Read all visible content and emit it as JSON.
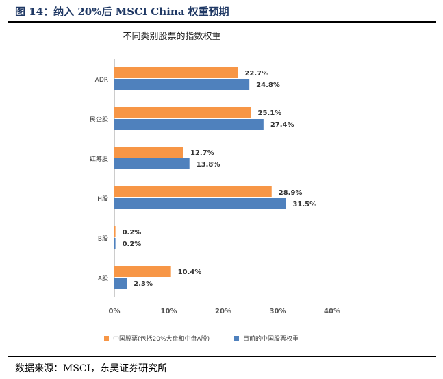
{
  "figure_title": "图 14：纳入 20%后 MSCI China 权重预期",
  "source": "数据来源：MSCI，东吴证券研究所",
  "chart_data": {
    "type": "bar",
    "orientation": "horizontal",
    "title": "不同类别股票的指数权重",
    "categories": [
      "ADR",
      "民企股",
      "红筹股",
      "H股",
      "B股",
      "A股"
    ],
    "series": [
      {
        "name": "中国股票(包括20%大盘和中盘A股)",
        "color": "#f79646",
        "values": [
          22.7,
          25.1,
          12.7,
          28.9,
          0.2,
          10.4
        ],
        "labels": [
          "22.7%",
          "25.1%",
          "12.7%",
          "28.9%",
          "0.2%",
          "10.4%"
        ]
      },
      {
        "name": "目前的中国股票权重",
        "color": "#4f81bd",
        "values": [
          24.8,
          27.4,
          13.8,
          31.5,
          0.2,
          2.3
        ],
        "labels": [
          "24.8%",
          "27.4%",
          "13.8%",
          "31.5%",
          "0.2%",
          "2.3%"
        ]
      }
    ],
    "xlim": [
      0,
      40
    ],
    "xticks": [
      "0%",
      "10%",
      "20%",
      "30%",
      "40%"
    ],
    "grid": false,
    "legend": "bottom"
  }
}
